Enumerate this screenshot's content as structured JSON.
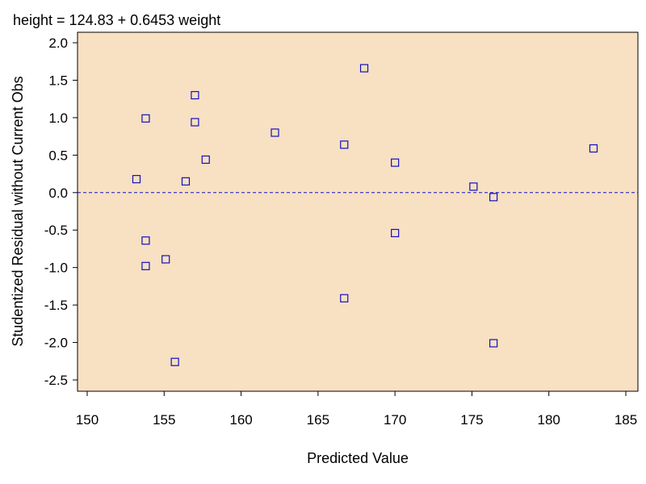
{
  "chart_data": {
    "type": "scatter",
    "title": "height =  124.83 + 0.6453 weight",
    "xlabel": "Predicted Value",
    "ylabel": "Studentized Residual without Current Obs",
    "xlim": [
      150,
      185
    ],
    "ylim": [
      -2.5,
      2.0
    ],
    "xticks": [
      150,
      155,
      160,
      165,
      170,
      175,
      180,
      185
    ],
    "yticks": [
      2.0,
      1.5,
      1.0,
      0.5,
      0.0,
      -0.5,
      -1.0,
      -1.5,
      -2.0,
      -2.5
    ],
    "yticks_labels": [
      "2.0",
      "1.5",
      "1.0",
      "0.5",
      "0.0",
      "-0.5",
      "-1.0",
      "-1.5",
      "-2.0",
      "-2.5"
    ],
    "reference_line": 0.0,
    "grid": false,
    "colors": {
      "plot_bg": "#f8e0c2",
      "marker": "#1010c0",
      "reference": "#1010c0",
      "axis": "#000000"
    },
    "points": [
      {
        "x": 153.2,
        "y": 0.18
      },
      {
        "x": 153.8,
        "y": 0.99
      },
      {
        "x": 153.8,
        "y": -0.64
      },
      {
        "x": 153.8,
        "y": -0.98
      },
      {
        "x": 155.1,
        "y": -0.89
      },
      {
        "x": 155.7,
        "y": -2.26
      },
      {
        "x": 156.4,
        "y": 0.15
      },
      {
        "x": 157.0,
        "y": 1.3
      },
      {
        "x": 157.0,
        "y": 0.94
      },
      {
        "x": 157.7,
        "y": 0.44
      },
      {
        "x": 162.2,
        "y": 0.8
      },
      {
        "x": 166.7,
        "y": 0.64
      },
      {
        "x": 166.7,
        "y": -1.41
      },
      {
        "x": 168.0,
        "y": 1.66
      },
      {
        "x": 170.0,
        "y": 0.4
      },
      {
        "x": 170.0,
        "y": -0.54
      },
      {
        "x": 175.1,
        "y": 0.08
      },
      {
        "x": 176.4,
        "y": -0.06
      },
      {
        "x": 176.4,
        "y": -2.01
      },
      {
        "x": 182.9,
        "y": 0.59
      }
    ]
  }
}
